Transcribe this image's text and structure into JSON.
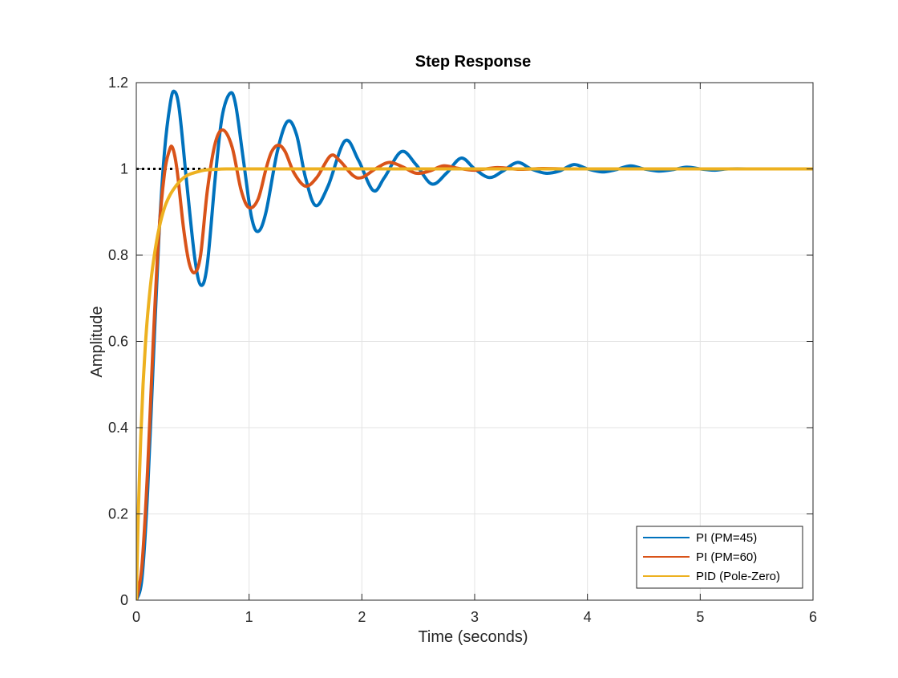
{
  "chart_data": {
    "type": "line",
    "title": "Step Response",
    "xlabel": "Time (seconds)",
    "ylabel": "Amplitude",
    "xlim": [
      0,
      6
    ],
    "ylim": [
      0,
      1.2
    ],
    "xticks": [
      0,
      1,
      2,
      3,
      4,
      5,
      6
    ],
    "xtick_labels": [
      "0",
      "1",
      "2",
      "3",
      "4",
      "5",
      "6"
    ],
    "yticks": [
      0,
      0.2,
      0.4,
      0.6,
      0.8,
      1,
      1.2
    ],
    "ytick_labels": [
      "0",
      "0.2",
      "0.4",
      "0.6",
      "0.8",
      "1",
      "1.2"
    ],
    "grid": true,
    "legend_position": "bottom-right",
    "reference_line": {
      "y": 1,
      "style": "dotted",
      "color": "#000000"
    },
    "series": [
      {
        "name": "PI (PM=45)",
        "color": "#0072BD",
        "x": [
          0,
          0.05,
          0.1,
          0.15,
          0.2,
          0.25,
          0.3,
          0.335,
          0.38,
          0.45,
          0.52,
          0.575,
          0.63,
          0.7,
          0.76,
          0.83,
          0.88,
          0.95,
          1.02,
          1.08,
          1.15,
          1.25,
          1.34,
          1.42,
          1.5,
          1.59,
          1.7,
          1.85,
          1.97,
          2.1,
          2.2,
          2.35,
          2.48,
          2.62,
          2.75,
          2.88,
          3.0,
          3.13,
          3.25,
          3.38,
          3.5,
          3.63,
          3.75,
          3.88,
          4.0,
          4.13,
          4.25,
          4.38,
          4.5,
          4.63,
          4.75,
          4.88,
          5.0,
          5.13,
          5.25,
          5.5,
          5.75,
          6.0
        ],
        "y": [
          0,
          0.05,
          0.25,
          0.55,
          0.84,
          1.04,
          1.15,
          1.18,
          1.14,
          0.96,
          0.79,
          0.73,
          0.78,
          0.98,
          1.12,
          1.175,
          1.15,
          1.02,
          0.89,
          0.855,
          0.9,
          1.04,
          1.11,
          1.08,
          0.98,
          0.915,
          0.96,
          1.065,
          1.02,
          0.95,
          0.98,
          1.04,
          1.01,
          0.965,
          0.99,
          1.025,
          1.0,
          0.98,
          0.995,
          1.015,
          1.0,
          0.99,
          0.995,
          1.01,
          1.0,
          0.993,
          0.998,
          1.007,
          1.0,
          0.995,
          0.998,
          1.004,
          1.0,
          0.997,
          1.0,
          1.0,
          1.0,
          1.0
        ]
      },
      {
        "name": "PI (PM=60)",
        "color": "#D95319",
        "x": [
          0,
          0.05,
          0.1,
          0.15,
          0.2,
          0.25,
          0.29,
          0.32,
          0.36,
          0.42,
          0.47,
          0.52,
          0.57,
          0.63,
          0.7,
          0.77,
          0.85,
          0.93,
          1.0,
          1.08,
          1.15,
          1.2,
          1.26,
          1.32,
          1.4,
          1.5,
          1.6,
          1.72,
          1.8,
          1.92,
          2.0,
          2.12,
          2.24,
          2.36,
          2.48,
          2.6,
          2.72,
          2.84,
          3.0,
          3.2,
          3.4,
          3.6,
          3.8,
          4.0,
          6.0
        ],
        "y": [
          0,
          0.08,
          0.3,
          0.6,
          0.85,
          0.99,
          1.04,
          1.05,
          1.0,
          0.86,
          0.78,
          0.76,
          0.8,
          0.95,
          1.06,
          1.09,
          1.05,
          0.95,
          0.91,
          0.93,
          1.0,
          1.04,
          1.055,
          1.04,
          0.99,
          0.96,
          0.98,
          1.03,
          1.02,
          0.985,
          0.98,
          1.0,
          1.015,
          1.005,
          0.99,
          0.995,
          1.007,
          1.002,
          0.997,
          1.003,
          0.999,
          1.001,
          1.0,
          1.0,
          1.0
        ]
      },
      {
        "name": "PID (Pole-Zero)",
        "color": "#EDB120",
        "x": [
          0,
          0.01,
          0.02,
          0.04,
          0.06,
          0.08,
          0.1,
          0.13,
          0.16,
          0.2,
          0.25,
          0.3,
          0.35,
          0.4,
          0.45,
          0.5,
          0.6,
          0.7,
          0.8,
          1.0,
          1.5,
          6.0
        ],
        "y": [
          0,
          0.12,
          0.22,
          0.38,
          0.5,
          0.59,
          0.66,
          0.74,
          0.8,
          0.86,
          0.91,
          0.94,
          0.96,
          0.975,
          0.985,
          0.99,
          0.997,
          0.999,
          1.0,
          1.0,
          1.0,
          1.0
        ]
      }
    ]
  }
}
